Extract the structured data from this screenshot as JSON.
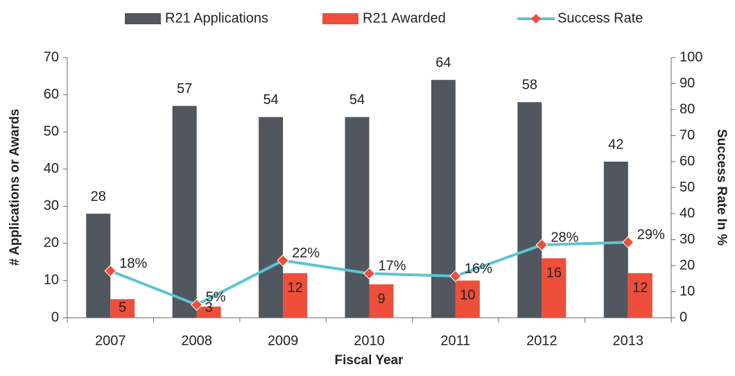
{
  "chart_data": {
    "type": "bar_line",
    "categories": [
      "2007",
      "2008",
      "2009",
      "2010",
      "2011",
      "2012",
      "2013"
    ],
    "series": [
      {
        "name": "R21 Applications",
        "color": "#50575e",
        "values": [
          28,
          57,
          54,
          54,
          64,
          58,
          42
        ]
      },
      {
        "name": "R21 Awarded",
        "color": "#ee4f3a",
        "values": [
          5,
          3,
          12,
          9,
          10,
          16,
          12
        ]
      },
      {
        "name": "Success Rate",
        "color": "#5bc4d4",
        "marker_color": "#ee4f3a",
        "axis": "y2",
        "values": [
          18,
          5,
          22,
          17,
          16,
          28,
          29
        ],
        "value_labels": [
          "18%",
          "5%",
          "22%",
          "17%",
          "16%",
          "28%",
          "29%"
        ]
      }
    ],
    "xlabel": "Fiscal Year",
    "ylabel": "# Applications or Awards",
    "y2label": "Success Rate In %",
    "ylim": [
      0,
      70
    ],
    "yticks": [
      0,
      10,
      20,
      30,
      40,
      50,
      60,
      70
    ],
    "y2lim": [
      0,
      100
    ],
    "y2ticks": [
      0,
      10,
      20,
      30,
      40,
      50,
      60,
      70,
      80,
      90,
      100
    ],
    "legend": "top"
  }
}
